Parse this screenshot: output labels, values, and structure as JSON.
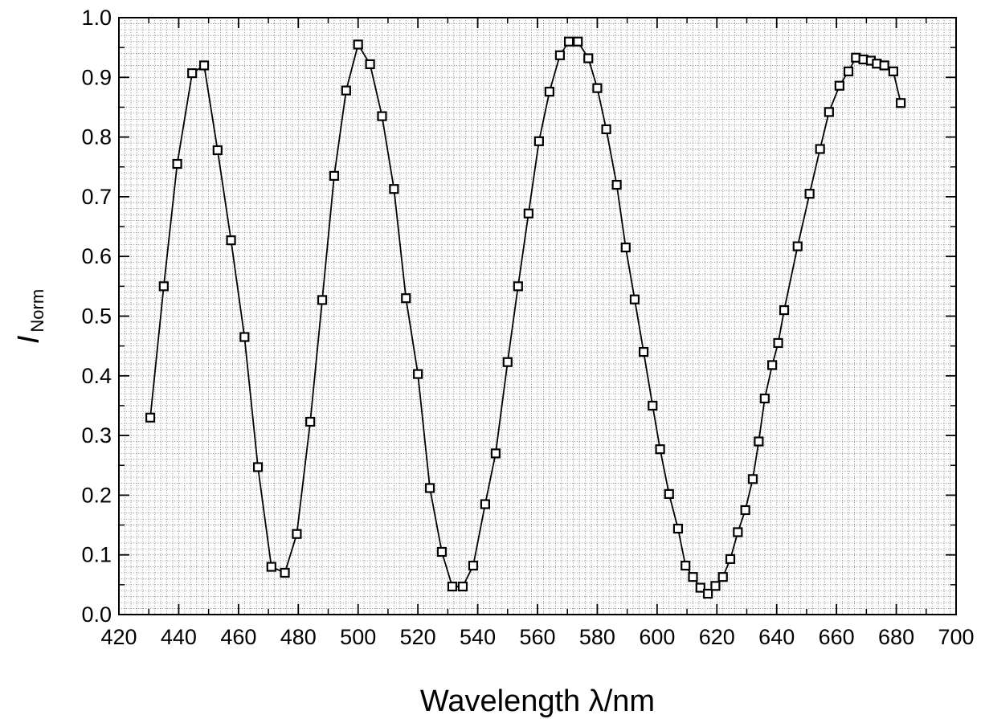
{
  "chart_data": {
    "type": "line",
    "title": "",
    "xlabel": "Wavelength λ/nm",
    "ylabel": "I",
    "ylabel_subscript": "Norm",
    "xlim": [
      420,
      700
    ],
    "ylim": [
      0.0,
      1.0
    ],
    "xticks": [
      420,
      440,
      460,
      480,
      500,
      520,
      540,
      560,
      580,
      600,
      620,
      640,
      660,
      680,
      700
    ],
    "yticks": [
      0.0,
      0.1,
      0.2,
      0.3,
      0.4,
      0.5,
      0.6,
      0.7,
      0.8,
      0.9,
      1.0
    ],
    "xtick_labels": [
      "420",
      "440",
      "460",
      "480",
      "500",
      "520",
      "540",
      "560",
      "580",
      "600",
      "620",
      "640",
      "660",
      "680",
      "700"
    ],
    "ytick_labels": [
      "0.0",
      "0.1",
      "0.2",
      "0.3",
      "0.4",
      "0.5",
      "0.6",
      "0.7",
      "0.8",
      "0.9",
      "1.0"
    ],
    "grid": "minor-dotted",
    "marker": "open-square",
    "line_color": "#000000",
    "series": [
      {
        "x": [
          430.5,
          435.0,
          439.5,
          444.5,
          448.5,
          453.0,
          457.5,
          462.0,
          466.5,
          471.0,
          475.5,
          479.5,
          484.0,
          488.0,
          492.0,
          496.0,
          500.0,
          504.0,
          508.0,
          512.0,
          516.0,
          520.0,
          524.0,
          528.0,
          531.5,
          535.0,
          538.5,
          542.5,
          546.0,
          550.0,
          553.5,
          557.0,
          560.5,
          564.0,
          567.5,
          570.5,
          573.5,
          577.0,
          580.0,
          583.0,
          586.5,
          589.5,
          592.5,
          595.5,
          598.5,
          601.0,
          604.0,
          607.0,
          609.5,
          612.0,
          614.5,
          617.0,
          619.5,
          622.0,
          624.5,
          627.0,
          629.5,
          632.0,
          634.0,
          636.0,
          638.5,
          640.5,
          642.5,
          647.0,
          651.0,
          654.5,
          657.5,
          661.0,
          664.0,
          666.5,
          669.0,
          671.5,
          673.5,
          676.0,
          679.0,
          681.5
        ],
        "values": [
          0.33,
          0.55,
          0.755,
          0.907,
          0.92,
          0.778,
          0.627,
          0.465,
          0.247,
          0.08,
          0.07,
          0.135,
          0.323,
          0.527,
          0.735,
          0.878,
          0.955,
          0.922,
          0.835,
          0.713,
          0.53,
          0.403,
          0.212,
          0.105,
          0.047,
          0.047,
          0.082,
          0.185,
          0.27,
          0.423,
          0.55,
          0.672,
          0.793,
          0.876,
          0.937,
          0.96,
          0.96,
          0.932,
          0.882,
          0.813,
          0.72,
          0.615,
          0.528,
          0.44,
          0.35,
          0.277,
          0.202,
          0.144,
          0.082,
          0.063,
          0.045,
          0.035,
          0.048,
          0.063,
          0.093,
          0.138,
          0.175,
          0.227,
          0.29,
          0.362,
          0.418,
          0.455,
          0.51,
          0.617,
          0.705,
          0.78,
          0.842,
          0.886,
          0.91,
          0.933,
          0.93,
          0.928,
          0.923,
          0.92,
          0.91,
          0.857
        ]
      }
    ]
  }
}
